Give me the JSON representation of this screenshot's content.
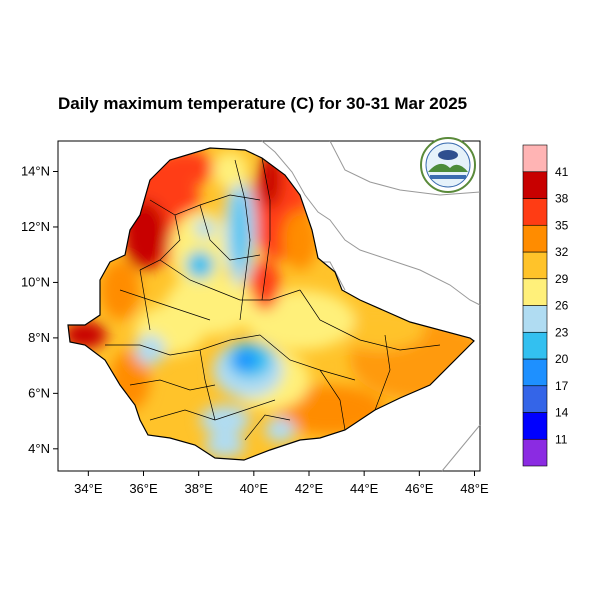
{
  "title": "Daily maximum temperature (C) for 30-31 Mar 2025",
  "x_ticks": [
    {
      "value": 34,
      "label": "34°E"
    },
    {
      "value": 36,
      "label": "36°E"
    },
    {
      "value": 38,
      "label": "38°E"
    },
    {
      "value": 40,
      "label": "40°E"
    },
    {
      "value": 42,
      "label": "42°E"
    },
    {
      "value": 44,
      "label": "44°E"
    },
    {
      "value": 46,
      "label": "46°E"
    },
    {
      "value": 48,
      "label": "48°E"
    }
  ],
  "y_ticks": [
    {
      "value": 4,
      "label": "4°N"
    },
    {
      "value": 6,
      "label": "6°N"
    },
    {
      "value": 8,
      "label": "8°N"
    },
    {
      "value": 10,
      "label": "10°N"
    },
    {
      "value": 12,
      "label": "12°N"
    },
    {
      "value": 14,
      "label": "14°N"
    }
  ],
  "extent": {
    "lon": [
      32.9,
      48.2
    ],
    "lat": [
      3.2,
      15.1
    ]
  },
  "colorbar": {
    "colors": [
      "#8b2be2",
      "#0000ff",
      "#3465e8",
      "#1e90ff",
      "#33c0f0",
      "#b0dcf2",
      "#fff07a",
      "#ffc32a",
      "#ff8c00",
      "#ff3c14",
      "#c80000",
      "#ffb4b4"
    ],
    "labels": [
      "11",
      "14",
      "17",
      "20",
      "23",
      "26",
      "29",
      "32",
      "35",
      "38",
      "41"
    ]
  },
  "logo": {
    "name": "meteorology-agency-logo"
  }
}
